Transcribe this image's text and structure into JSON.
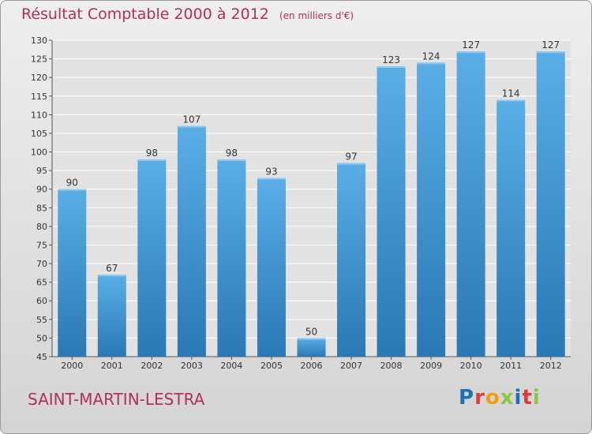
{
  "header": {
    "title": "Résultat Comptable 2000 à 2012",
    "unit": "(en milliers d'€)"
  },
  "footer": {
    "commune": "SAINT-MARTIN-LESTRA",
    "logo_letters": [
      "P",
      "r",
      "o",
      "x",
      "i",
      "t",
      "i"
    ]
  },
  "colors": {
    "title": "#b03060",
    "bar_light": "#5aaee6",
    "bar_dark": "#2a78b4",
    "logo": [
      "#1e6fb8",
      "#e23a3a",
      "#f39c12",
      "#8cc63f",
      "#1e6fb8",
      "#e23a3a",
      "#8cc63f"
    ]
  },
  "chart_data": {
    "type": "bar",
    "title": "Résultat Comptable 2000 à 2012",
    "subtitle": "(en milliers d'€)",
    "categories": [
      "2000",
      "2001",
      "2002",
      "2003",
      "2004",
      "2005",
      "2006",
      "2007",
      "2008",
      "2009",
      "2010",
      "2011",
      "2012"
    ],
    "values": [
      90,
      67,
      98,
      107,
      98,
      93,
      50,
      97,
      123,
      124,
      127,
      114,
      127
    ],
    "ylim": [
      45,
      130
    ],
    "yticks": [
      "45",
      "50",
      "55",
      "60",
      "65",
      "70",
      "75",
      "80",
      "85",
      "90",
      "95",
      "100",
      "105",
      "110",
      "115",
      "120",
      "125",
      "130"
    ],
    "grid": "horizontal",
    "data_labels": true
  }
}
